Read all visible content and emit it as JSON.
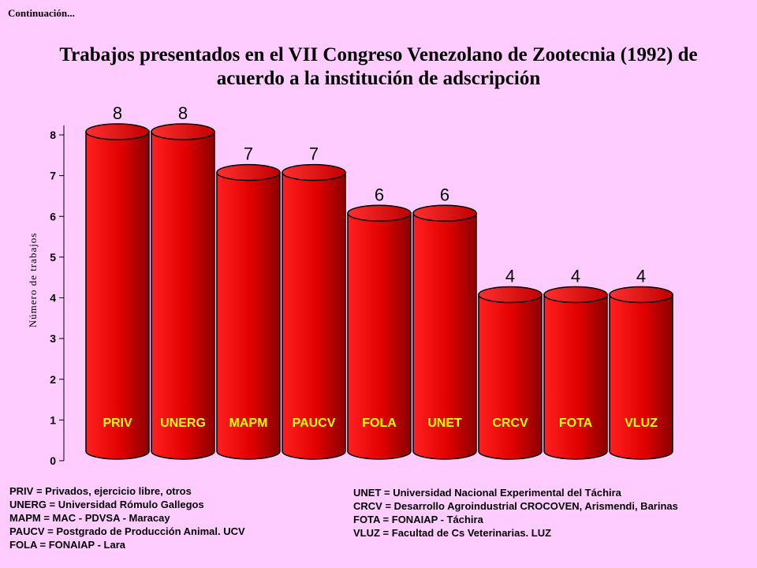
{
  "page": {
    "continuation": "Continuación...",
    "title_line1": "Trabajos presentados en el VII Congreso Venezolano de Zootecnia (1992) de",
    "title_line2": "acuerdo a la institución de adscripción"
  },
  "chart_data": {
    "type": "bar",
    "title": "Trabajos presentados en el VII Congreso Venezolano de Zootecnia (1992) de acuerdo a la institución de adscripción",
    "xlabel": "",
    "ylabel": "Número de trabajos",
    "categories": [
      "PRIV",
      "UNERG",
      "MAPM",
      "PAUCV",
      "FOLA",
      "UNET",
      "CRCV",
      "FOTA",
      "VLUZ"
    ],
    "values": [
      8,
      8,
      7,
      7,
      6,
      6,
      4,
      4,
      4
    ],
    "ylim": [
      0,
      8
    ],
    "yticks": [
      "0",
      "1",
      "2",
      "3",
      "4",
      "5",
      "6",
      "7",
      "8"
    ],
    "grid": false,
    "bar_color": "#ee0000"
  },
  "legend": {
    "left": [
      "PRIV = Privados, ejercicio libre, otros",
      "UNERG = Universidad Rómulo Gallegos",
      "MAPM = MAC - PDVSA - Maracay",
      "PAUCV = Postgrado de Producción  Animal. UCV",
      "FOLA = FONAIAP  - Lara"
    ],
    "right": [
      "UNET = Universidad Nacional Experimental del Táchira",
      "CRCV = Desarrollo Agroindustrial CROCOVEN, Arismendi, Barinas",
      "FOTA = FONAIAP - Táchira",
      "VLUZ = Facultad de Cs Veterinarias. LUZ"
    ]
  }
}
